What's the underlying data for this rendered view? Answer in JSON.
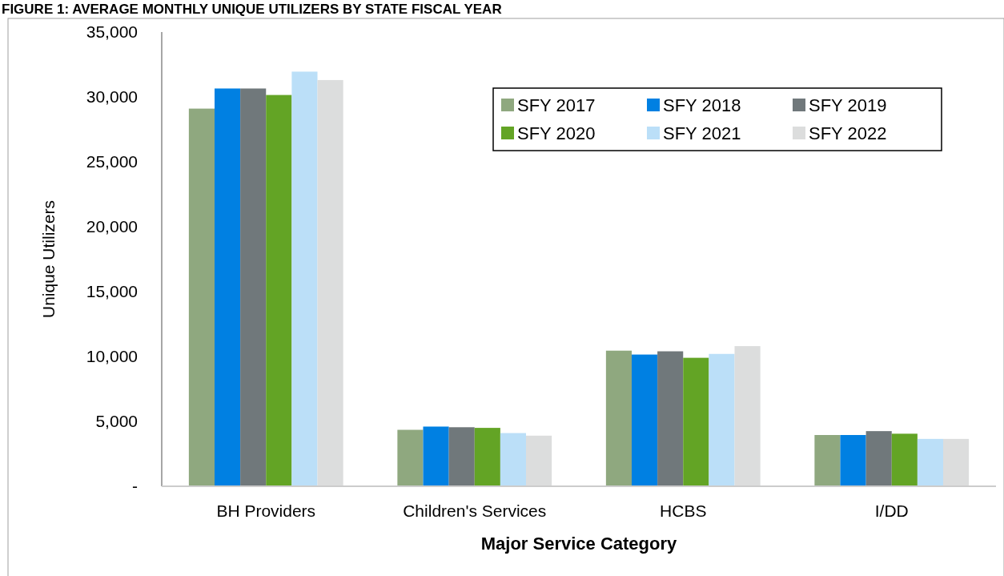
{
  "chart_data": {
    "type": "bar",
    "title": "FIGURE 1: AVERAGE MONTHLY UNIQUE UTILIZERS BY STATE FISCAL YEAR",
    "xlabel": "Major Service Category",
    "ylabel": "Unique Utilizers",
    "categories": [
      "BH Providers",
      "Children's Services",
      "HCBS",
      "I/DD"
    ],
    "series": [
      {
        "name": "SFY 2017",
        "color": "#8fa87f",
        "values": [
          29100,
          4350,
          10450,
          3950
        ]
      },
      {
        "name": "SFY 2018",
        "color": "#0080e2",
        "values": [
          30650,
          4600,
          10150,
          3950
        ]
      },
      {
        "name": "SFY 2019",
        "color": "#70787b",
        "values": [
          30650,
          4550,
          10400,
          4250
        ]
      },
      {
        "name": "SFY 2020",
        "color": "#63a425",
        "values": [
          30150,
          4500,
          9900,
          4050
        ]
      },
      {
        "name": "SFY 2021",
        "color": "#bbdff8",
        "values": [
          31950,
          4100,
          10200,
          3650
        ]
      },
      {
        "name": "SFY 2022",
        "color": "#dcdddd",
        "values": [
          31300,
          3900,
          10800,
          3650
        ]
      }
    ],
    "ylim": [
      0,
      35000
    ],
    "yticks": [
      {
        "value": 0,
        "label": "-"
      },
      {
        "value": 5000,
        "label": "5,000"
      },
      {
        "value": 10000,
        "label": "10,000"
      },
      {
        "value": 15000,
        "label": "15,000"
      },
      {
        "value": 20000,
        "label": "20,000"
      },
      {
        "value": 25000,
        "label": "25,000"
      },
      {
        "value": 30000,
        "label": "30,000"
      },
      {
        "value": 35000,
        "label": "35,000"
      }
    ],
    "grid": false,
    "legend": "top right"
  }
}
